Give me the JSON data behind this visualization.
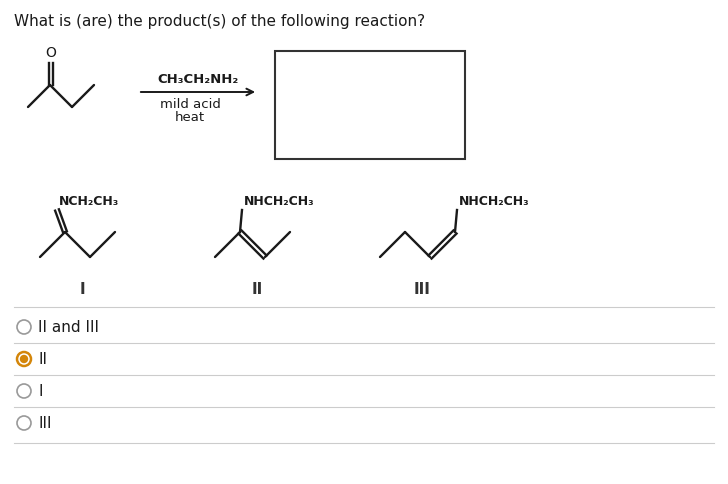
{
  "title": "What is (are) the product(s) of the following reaction?",
  "title_fontsize": 11,
  "bg_color": "#ffffff",
  "text_color": "#1a1a1a",
  "gray_line": "#cccccc",
  "selected_color": "#d4860a",
  "unselected_color": "#999999",
  "choices": [
    {
      "label": "II and III",
      "selected": false
    },
    {
      "label": "II",
      "selected": true
    },
    {
      "label": "I",
      "selected": false
    },
    {
      "label": "III",
      "selected": false
    }
  ],
  "reagent_above": "CH₃CH₂NH₂",
  "reagent_below_1": "mild acid",
  "reagent_below_2": "heat",
  "lw": 1.7
}
